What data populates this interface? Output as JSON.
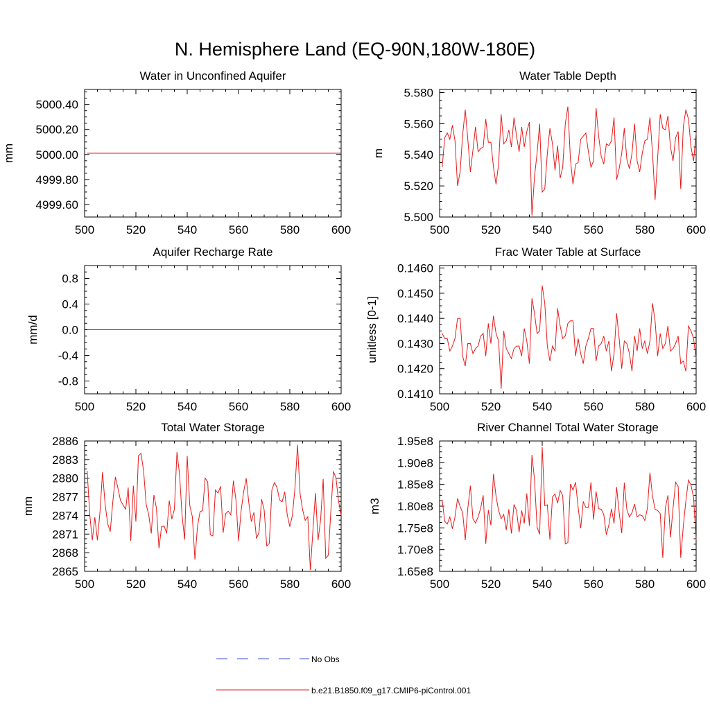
{
  "figure_title": "N. Hemisphere Land (EQ-90N,180W-180E)",
  "legend": {
    "entries": [
      {
        "label": "No Obs",
        "color": "#3b4fd8",
        "dashed": true
      },
      {
        "label": "b.e21.B1850.f09_g17.CMIP6-piControl.001",
        "color": "#e8191a",
        "dashed": false
      }
    ]
  },
  "chart_data": [
    {
      "type": "line",
      "title": "Water in Unconfined Aquifer",
      "xlabel": "",
      "ylabel": "mm",
      "xlim": [
        500,
        600
      ],
      "xticks": [
        500,
        520,
        540,
        560,
        580,
        600
      ],
      "ylim": [
        4999.5,
        5000.52
      ],
      "yticks": [
        4999.6,
        4999.8,
        5000.0,
        5000.2,
        5000.4
      ],
      "ytick_labels": [
        "4999.60",
        "4999.80",
        "5000.00",
        "5000.20",
        "5000.40"
      ],
      "series": [
        {
          "name": "b.e21.B1850.f09_g17.CMIP6-piControl.001",
          "x": [
            501,
            600
          ],
          "values": [
            5000.01,
            5000.01
          ]
        }
      ]
    },
    {
      "type": "line",
      "title": "Water Table Depth",
      "xlabel": "",
      "ylabel": "m",
      "xlim": [
        500,
        600
      ],
      "xticks": [
        500,
        520,
        540,
        560,
        580,
        600
      ],
      "ylim": [
        5.5,
        5.582
      ],
      "yticks": [
        5.5,
        5.52,
        5.54,
        5.56,
        5.58
      ],
      "ytick_labels": [
        "5.500",
        "5.520",
        "5.540",
        "5.560",
        "5.580"
      ],
      "series": [
        {
          "name": "b.e21.B1850.f09_g17.CMIP6-piControl.001",
          "x_start": 501,
          "values": [
            5.532,
            5.551,
            5.554,
            5.55,
            5.559,
            5.549,
            5.52,
            5.529,
            5.553,
            5.569,
            5.55,
            5.529,
            5.543,
            5.558,
            5.542,
            5.544,
            5.545,
            5.563,
            5.548,
            5.548,
            5.532,
            5.521,
            5.534,
            5.566,
            5.547,
            5.549,
            5.556,
            5.545,
            5.564,
            5.552,
            5.542,
            5.558,
            5.545,
            5.555,
            5.561,
            5.501,
            5.526,
            5.541,
            5.56,
            5.516,
            5.518,
            5.541,
            5.557,
            5.547,
            5.53,
            5.546,
            5.525,
            5.532,
            5.56,
            5.571,
            5.537,
            5.521,
            5.534,
            5.535,
            5.55,
            5.552,
            5.554,
            5.542,
            5.532,
            5.536,
            5.57,
            5.552,
            5.539,
            5.534,
            5.547,
            5.546,
            5.549,
            5.564,
            5.524,
            5.531,
            5.541,
            5.557,
            5.537,
            5.531,
            5.541,
            5.56,
            5.536,
            5.529,
            5.541,
            5.549,
            5.55,
            5.564,
            5.541,
            5.511,
            5.538,
            5.566,
            5.557,
            5.556,
            5.565,
            5.545,
            5.536,
            5.551,
            5.555,
            5.518,
            5.558,
            5.569,
            5.563,
            5.545,
            5.536,
            5.554
          ]
        }
      ]
    },
    {
      "type": "line",
      "title": "Aquifer Recharge Rate",
      "xlabel": "",
      "ylabel": "mm/d",
      "xlim": [
        500,
        600
      ],
      "xticks": [
        500,
        520,
        540,
        560,
        580,
        600
      ],
      "ylim": [
        -1.0,
        1.0
      ],
      "yticks": [
        -0.8,
        -0.4,
        0.0,
        0.4,
        0.8
      ],
      "ytick_labels": [
        "-0.8",
        "-0.4",
        "0.0",
        "0.4",
        "0.8"
      ],
      "series": [
        {
          "name": "b.e21.B1850.f09_g17.CMIP6-piControl.001",
          "x": [
            501,
            600
          ],
          "values": [
            0.0,
            0.0
          ]
        }
      ]
    },
    {
      "type": "line",
      "title": "Frac Water Table at Surface",
      "xlabel": "",
      "ylabel": "unitless [0-1]",
      "xlim": [
        500,
        600
      ],
      "xticks": [
        500,
        520,
        540,
        560,
        580,
        600
      ],
      "ylim": [
        0.141,
        0.1461
      ],
      "yticks": [
        0.141,
        0.142,
        0.143,
        0.144,
        0.145,
        0.146
      ],
      "ytick_labels": [
        "0.1410",
        "0.1420",
        "0.1430",
        "0.1440",
        "0.1450",
        "0.1460"
      ],
      "series": [
        {
          "name": "b.e21.B1850.f09_g17.CMIP6-piControl.001",
          "x_start": 501,
          "values": [
            0.1434,
            0.1432,
            0.1432,
            0.1427,
            0.1429,
            0.1432,
            0.144,
            0.144,
            0.1425,
            0.1421,
            0.143,
            0.143,
            0.1426,
            0.1428,
            0.1429,
            0.1433,
            0.1434,
            0.1425,
            0.1438,
            0.143,
            0.1441,
            0.1434,
            0.1431,
            0.1412,
            0.1435,
            0.1428,
            0.1426,
            0.1424,
            0.1428,
            0.1429,
            0.1429,
            0.1425,
            0.1436,
            0.1431,
            0.1422,
            0.1448,
            0.1442,
            0.1434,
            0.1435,
            0.1453,
            0.1446,
            0.1429,
            0.1423,
            0.1429,
            0.1427,
            0.1444,
            0.1437,
            0.1432,
            0.1433,
            0.1438,
            0.1439,
            0.1439,
            0.1425,
            0.1432,
            0.1426,
            0.1422,
            0.1429,
            0.1432,
            0.1436,
            0.1436,
            0.1423,
            0.1429,
            0.143,
            0.1433,
            0.1427,
            0.1431,
            0.1419,
            0.1426,
            0.1442,
            0.1432,
            0.142,
            0.1431,
            0.143,
            0.1426,
            0.1419,
            0.1433,
            0.1427,
            0.1436,
            0.1428,
            0.1431,
            0.1426,
            0.1431,
            0.1446,
            0.1439,
            0.1425,
            0.1434,
            0.1428,
            0.143,
            0.1437,
            0.1427,
            0.1428,
            0.143,
            0.1433,
            0.1422,
            0.1423,
            0.1419,
            0.1437,
            0.1435,
            0.1432,
            0.1424
          ]
        }
      ]
    },
    {
      "type": "line",
      "title": "Total Water Storage",
      "xlabel": "",
      "ylabel": "mm",
      "xlim": [
        500,
        600
      ],
      "xticks": [
        500,
        520,
        540,
        560,
        580,
        600
      ],
      "ylim": [
        2865,
        2886
      ],
      "yticks": [
        2865,
        2868,
        2871,
        2874,
        2877,
        2880,
        2883,
        2886
      ],
      "ytick_labels": [
        "2865",
        "2868",
        "2871",
        "2874",
        "2877",
        "2880",
        "2883",
        "2886"
      ],
      "series": [
        {
          "name": "b.e21.B1850.f09_g17.CMIP6-piControl.001",
          "x_start": 501,
          "values": [
            2881.2,
            2874.2,
            2870.0,
            2873.7,
            2870.0,
            2874.6,
            2881.0,
            2875.8,
            2872.7,
            2871.4,
            2876.2,
            2880.2,
            2878.4,
            2876.4,
            2875.7,
            2875.0,
            2878.5,
            2869.9,
            2878.8,
            2873.0,
            2883.6,
            2884.0,
            2881.2,
            2875.8,
            2874.1,
            2871.1,
            2877.3,
            2875.2,
            2868.7,
            2872.2,
            2872.3,
            2871.1,
            2876.4,
            2873.4,
            2875.0,
            2884.2,
            2880.7,
            2874.0,
            2870.1,
            2883.6,
            2875.6,
            2873.8,
            2866.9,
            2872.2,
            2874.6,
            2874.8,
            2880.0,
            2879.4,
            2870.9,
            2870.7,
            2878.1,
            2877.6,
            2878.7,
            2871.2,
            2874.3,
            2874.7,
            2874.1,
            2879.6,
            2876.5,
            2869.9,
            2874.7,
            2877.8,
            2880.0,
            2876.1,
            2873.0,
            2874.5,
            2870.3,
            2871.3,
            2876.6,
            2874.9,
            2869.1,
            2869.5,
            2878.1,
            2879.3,
            2878.5,
            2876.5,
            2876.2,
            2877.8,
            2874.1,
            2872.2,
            2874.0,
            2878.4,
            2885.4,
            2877.5,
            2874.9,
            2873.2,
            2873.8,
            2865.2,
            2871.6,
            2877.6,
            2870.0,
            2873.3,
            2879.9,
            2867.1,
            2867.6,
            2874.8,
            2881.1,
            2880.0,
            2876.3,
            2874.0
          ]
        }
      ]
    },
    {
      "type": "line",
      "title": "River Channel Total Water Storage",
      "xlabel": "",
      "ylabel": "m3",
      "xlim": [
        500,
        600
      ],
      "xticks": [
        500,
        520,
        540,
        560,
        580,
        600
      ],
      "ylim": [
        165000000.0,
        195000000.0
      ],
      "yticks": [
        165000000.0,
        170000000.0,
        175000000.0,
        180000000.0,
        185000000.0,
        190000000.0,
        195000000.0
      ],
      "ytick_labels": [
        "1.65e8",
        "1.70e8",
        "1.75e8",
        "1.80e8",
        "1.85e8",
        "1.90e8",
        "1.95e8"
      ],
      "series": [
        {
          "name": "b.e21.B1850.f09_g17.CMIP6-piControl.001",
          "x_start": 501,
          "values": [
            181500000.0,
            176500000.0,
            175900000.0,
            177500000.0,
            174800000.0,
            177500000.0,
            181800000.0,
            179900000.0,
            178500000.0,
            172200000.0,
            179500000.0,
            184700000.0,
            177100000.0,
            176100000.0,
            177500000.0,
            179500000.0,
            182500000.0,
            171300000.0,
            179100000.0,
            175600000.0,
            187400000.0,
            182300000.0,
            179000000.0,
            177100000.0,
            178100000.0,
            174500000.0,
            179300000.0,
            173700000.0,
            180400000.0,
            179000000.0,
            174000000.0,
            179000000.0,
            176000000.0,
            182900000.0,
            175500000.0,
            191800000.0,
            186100000.0,
            175200000.0,
            173500000.0,
            193600000.0,
            180100000.0,
            180300000.0,
            172300000.0,
            182100000.0,
            182800000.0,
            180700000.0,
            183600000.0,
            182400000.0,
            171300000.0,
            171600000.0,
            185100000.0,
            183700000.0,
            185500000.0,
            179800000.0,
            174900000.0,
            181000000.0,
            179700000.0,
            179700000.0,
            185500000.0,
            176900000.0,
            183400000.0,
            179400000.0,
            179300000.0,
            178100000.0,
            173400000.0,
            175700000.0,
            179400000.0,
            176000000.0,
            184400000.0,
            178500000.0,
            173800000.0,
            185400000.0,
            179200000.0,
            177500000.0,
            178500000.0,
            180500000.0,
            177500000.0,
            178000000.0,
            177800000.0,
            176700000.0,
            179500000.0,
            187700000.0,
            182300000.0,
            179300000.0,
            179000000.0,
            178300000.0,
            168100000.0,
            179500000.0,
            182500000.0,
            172800000.0,
            179500000.0,
            185500000.0,
            184500000.0,
            168100000.0,
            175400000.0,
            181200000.0,
            186000000.0,
            184800000.0,
            182000000.0,
            172200000.0
          ]
        }
      ]
    }
  ]
}
